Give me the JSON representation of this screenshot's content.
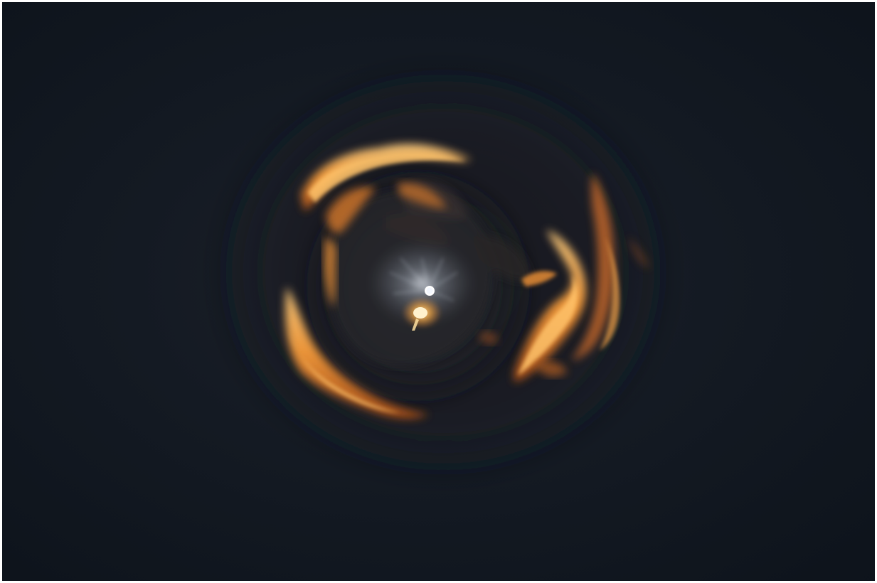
{
  "photo": {
    "subject": "",
    "palette": {
      "sky": "#121923",
      "sky_edge": "#0d131b",
      "flame_bright": "#ffc36a",
      "flame_mid": "#f59a3a",
      "flame_deep": "#b8561a",
      "cloud_shadow": "#1b1e26",
      "cloud_mid": "#2a2a30",
      "moon_glow": "#dfe6f0",
      "moon_core": "#ffffff",
      "spark": "#ffb347"
    }
  }
}
